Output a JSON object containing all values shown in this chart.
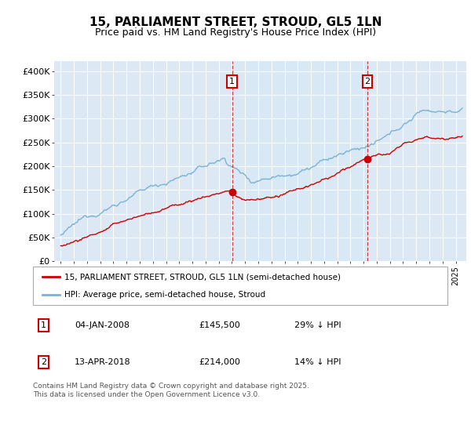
{
  "title": "15, PARLIAMENT STREET, STROUD, GL5 1LN",
  "subtitle": "Price paid vs. HM Land Registry's House Price Index (HPI)",
  "legend_line1": "15, PARLIAMENT STREET, STROUD, GL5 1LN (semi-detached house)",
  "legend_line2": "HPI: Average price, semi-detached house, Stroud",
  "footnote": "Contains HM Land Registry data © Crown copyright and database right 2025.\nThis data is licensed under the Open Government Licence v3.0.",
  "marker1_date": "04-JAN-2008",
  "marker1_price": "£145,500",
  "marker1_hpi": "29% ↓ HPI",
  "marker1_x": 2008.02,
  "marker1_y": 145500,
  "marker2_date": "13-APR-2018",
  "marker2_price": "£214,000",
  "marker2_hpi": "14% ↓ HPI",
  "marker2_x": 2018.28,
  "marker2_y": 214000,
  "hpi_color": "#7ab3d4",
  "price_color": "#cc0000",
  "vline_color": "#cc0000",
  "shade_color": "#d6e8f5",
  "ylim": [
    0,
    420000
  ],
  "yticks": [
    0,
    50000,
    100000,
    150000,
    200000,
    250000,
    300000,
    350000,
    400000
  ],
  "ytick_labels": [
    "£0",
    "£50K",
    "£100K",
    "£150K",
    "£200K",
    "£250K",
    "£300K",
    "£350K",
    "£400K"
  ],
  "xlim": [
    1994.5,
    2025.8
  ],
  "plot_bg_color": "#dce9f5",
  "title_fontsize": 11,
  "subtitle_fontsize": 9
}
